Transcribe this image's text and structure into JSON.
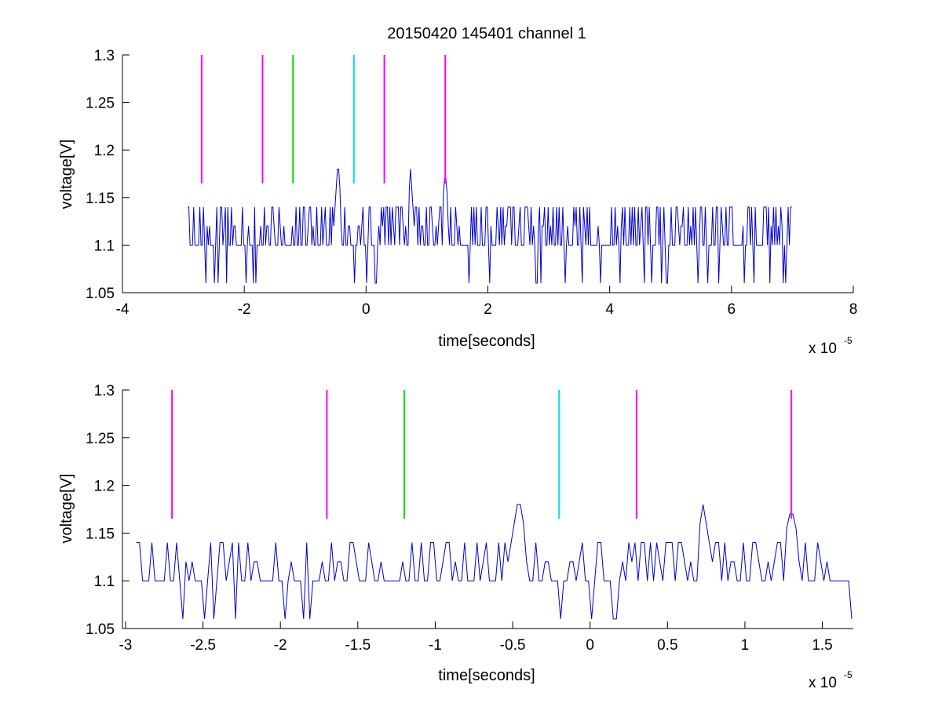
{
  "title": "20150420 145401 channel 1",
  "colors": {
    "trace": "#0000cc",
    "magenta": "#ff00ff",
    "green": "#00e000",
    "cyan": "#00e0e0"
  },
  "chart_data": [
    {
      "type": "line",
      "title": "20150420 145401 channel 1",
      "xlabel": "time[seconds]",
      "ylabel": "voltage[V]",
      "x_multiplier_label": "x 10",
      "x_multiplier_exponent": "-5",
      "xlim": [
        -4,
        8
      ],
      "ylim": [
        1.05,
        1.3
      ],
      "xticks": [
        "-4",
        "-2",
        "0",
        "2",
        "4",
        "6",
        "8"
      ],
      "yticks": [
        "1.05",
        "1.1",
        "1.15",
        "1.2",
        "1.25",
        "1.3"
      ],
      "trace_range": [
        -2.93,
        7.0
      ],
      "trace_levels": [
        1.06,
        1.1,
        1.12,
        1.14
      ],
      "peaks": [
        {
          "x": -0.46,
          "y": 1.18
        },
        {
          "x": 0.73,
          "y": 1.18
        },
        {
          "x": 1.3,
          "y": 1.17
        }
      ],
      "markers": [
        {
          "x": -2.7,
          "y0": 1.165,
          "y1": 1.3,
          "color": "magenta"
        },
        {
          "x": -1.7,
          "y0": 1.165,
          "y1": 1.3,
          "color": "magenta"
        },
        {
          "x": -1.2,
          "y0": 1.165,
          "y1": 1.3,
          "color": "green"
        },
        {
          "x": -0.2,
          "y0": 1.165,
          "y1": 1.3,
          "color": "cyan"
        },
        {
          "x": 0.3,
          "y0": 1.165,
          "y1": 1.3,
          "color": "magenta"
        },
        {
          "x": 1.3,
          "y0": 1.165,
          "y1": 1.3,
          "color": "magenta"
        }
      ]
    },
    {
      "type": "line",
      "xlabel": "time[seconds]",
      "ylabel": "voltage[V]",
      "x_multiplier_label": "x 10",
      "x_multiplier_exponent": "-5",
      "xlim": [
        -3.02,
        1.7
      ],
      "ylim": [
        1.05,
        1.3
      ],
      "xticks": [
        "-3",
        "-2.5",
        "-2",
        "-1.5",
        "-1",
        "-0.5",
        "0",
        "0.5",
        "1",
        "1.5"
      ],
      "yticks": [
        "1.05",
        "1.1",
        "1.15",
        "1.2",
        "1.25",
        "1.3"
      ],
      "trace_range": [
        -2.93,
        1.7
      ],
      "trace_levels": [
        1.06,
        1.1,
        1.12,
        1.14
      ],
      "peaks": [
        {
          "x": -0.46,
          "y": 1.18
        },
        {
          "x": 0.73,
          "y": 1.18
        },
        {
          "x": 1.3,
          "y": 1.17
        }
      ],
      "markers": [
        {
          "x": -2.7,
          "y0": 1.165,
          "y1": 1.3,
          "color": "magenta"
        },
        {
          "x": -1.7,
          "y0": 1.165,
          "y1": 1.3,
          "color": "magenta"
        },
        {
          "x": -1.2,
          "y0": 1.165,
          "y1": 1.3,
          "color": "green"
        },
        {
          "x": -0.2,
          "y0": 1.165,
          "y1": 1.3,
          "color": "cyan"
        },
        {
          "x": 0.3,
          "y0": 1.165,
          "y1": 1.3,
          "color": "magenta"
        },
        {
          "x": 1.3,
          "y0": 1.165,
          "y1": 1.3,
          "color": "magenta"
        }
      ]
    }
  ]
}
